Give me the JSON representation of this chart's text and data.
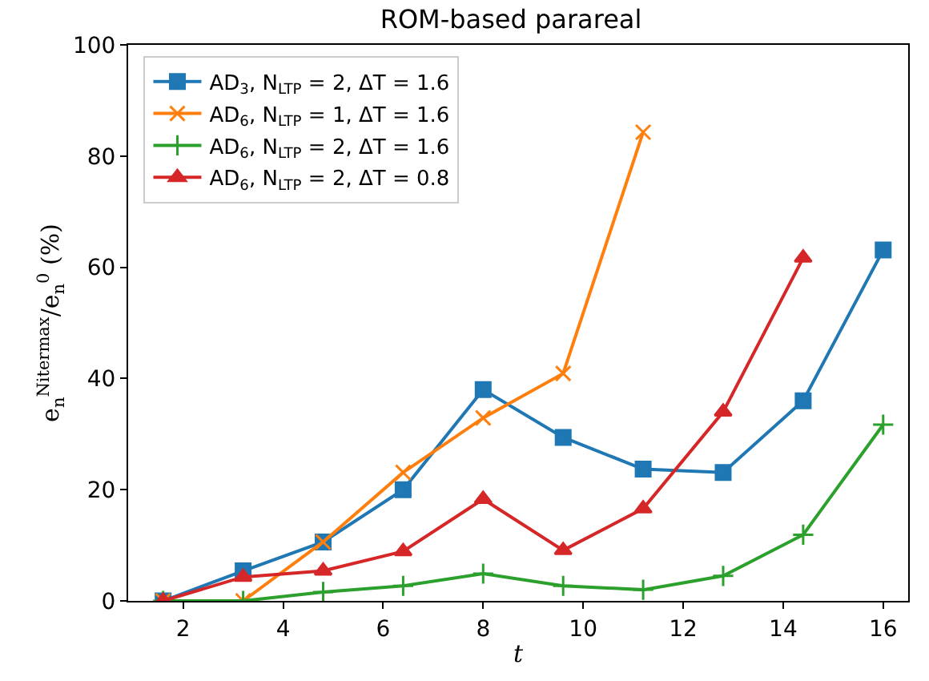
{
  "chart_data": {
    "type": "line",
    "title": "ROM-based parareal",
    "xlabel": "t",
    "ylabel": "e$_{n}$$^{Nitermax}$/e$_{n}$$^{0}$ (%)",
    "x": [
      1.6,
      3.2,
      4.8,
      6.4,
      8.0,
      9.6,
      11.2,
      12.8,
      14.4,
      16.0
    ],
    "series": [
      {
        "name": "AD$_{3}$, N$_{LTP}$ = 2, ΔT = 1.6",
        "color": "#1f77b4",
        "marker": "square",
        "values": [
          0,
          5.4,
          10.6,
          20,
          38,
          29.4,
          23.7,
          23.1,
          36,
          63.1
        ]
      },
      {
        "name": "AD$_{6}$, N$_{LTP}$ = 1, ΔT = 1.6",
        "color": "#ff7f0e",
        "marker": "cross",
        "values": [
          0,
          0,
          10.6,
          23.1,
          32.9,
          40.9,
          84.3,
          null,
          null,
          null
        ]
      },
      {
        "name": "AD$_{6}$, N$_{LTP}$ = 2, ΔT = 1.6",
        "color": "#2ca02c",
        "marker": "plus",
        "values": [
          0,
          0,
          1.6,
          2.7,
          4.9,
          2.7,
          2.0,
          4.5,
          11.9,
          31.7
        ]
      },
      {
        "name": "AD$_{6}$, N$_{LTP}$ = 2, ΔT = 0.8",
        "color": "#d62728",
        "marker": "triangle",
        "values": [
          0,
          4.3,
          5.4,
          8.9,
          18.3,
          9.1,
          16.6,
          34,
          61.7,
          null
        ]
      }
    ],
    "xlim": [
      0.9,
      16.5
    ],
    "xticks": [
      2,
      4,
      6,
      8,
      10,
      12,
      14,
      16
    ],
    "ylim": [
      0,
      100
    ],
    "yticks": [
      0,
      20,
      40,
      60,
      80,
      100
    ],
    "legend": "top left"
  }
}
